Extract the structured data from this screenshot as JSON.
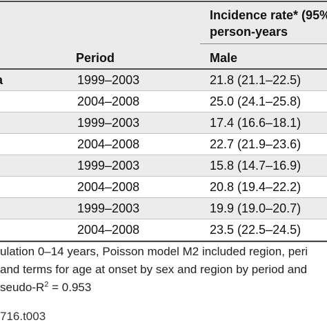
{
  "table": {
    "header": {
      "rate_line1": "Incidence rate* (95%",
      "rate_line2": "person-years",
      "period": "Period",
      "male": "Male"
    },
    "rows": [
      {
        "group": "a",
        "period": "1999–2003",
        "male": "21.8 (21.1–22.5)"
      },
      {
        "group": "",
        "period": "2004–2008",
        "male": "25.0 (24.1–25.8)"
      },
      {
        "group": "",
        "period": "1999–2003",
        "male": "17.4 (16.6–18.1)"
      },
      {
        "group": "",
        "period": "2004–2008",
        "male": "22.7 (21.9–23.6)"
      },
      {
        "group": "",
        "period": "1999–2003",
        "male": "15.8 (14.7–16.9)"
      },
      {
        "group": "",
        "period": "2004–2008",
        "male": "20.8 (19.4–22.2)"
      },
      {
        "group": "",
        "period": "1999–2003",
        "male": "19.9 (19.0–20.7)"
      },
      {
        "group": "",
        "period": "2004–2008",
        "male": "23.5 (22.5–24.5)"
      }
    ]
  },
  "footnotes": {
    "line1": "ulation 0–14 years, Poisson model M2 included region, peri",
    "line2": "and terms for age at onset by sex and region by period and",
    "line3_prefix": "seudo-R",
    "line3_sup": "2",
    "line3_suffix": " = 0.953"
  },
  "doi": "716.t003"
}
